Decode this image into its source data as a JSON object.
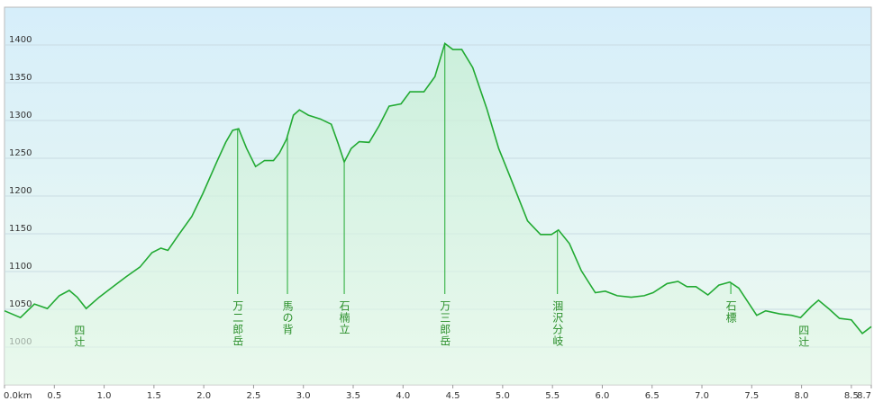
{
  "chart_data": {
    "type": "area",
    "x": [
      0,
      0.16,
      0.3,
      0.43,
      0.55,
      0.65,
      0.73,
      0.82,
      0.95,
      1.09,
      1.22,
      1.36,
      1.48,
      1.57,
      1.64,
      1.75,
      1.88,
      1.99,
      2.13,
      2.22,
      2.29,
      2.35,
      2.43,
      2.52,
      2.61,
      2.7,
      2.76,
      2.83,
      2.9,
      2.96,
      3.05,
      3.17,
      3.28,
      3.35,
      3.41,
      3.48,
      3.56,
      3.66,
      3.76,
      3.86,
      3.98,
      4.07,
      4.21,
      4.32,
      4.42,
      4.5,
      4.59,
      4.7,
      4.84,
      4.96,
      5.07,
      5.25,
      5.38,
      5.49,
      5.56,
      5.67,
      5.79,
      5.93,
      6.03,
      6.15,
      6.29,
      6.42,
      6.51,
      6.65,
      6.76,
      6.85,
      6.94,
      7.06,
      7.17,
      7.28,
      7.37,
      7.46,
      7.55,
      7.64,
      7.78,
      7.9,
      7.99,
      8.1,
      8.17,
      8.28,
      8.38,
      8.5,
      8.61,
      8.7
    ],
    "values": [
      1048,
      1039,
      1057,
      1051,
      1068,
      1075,
      1066,
      1051,
      1066,
      1080,
      1093,
      1106,
      1125,
      1131,
      1128,
      1149,
      1173,
      1203,
      1245,
      1271,
      1287,
      1289,
      1263,
      1239,
      1247,
      1247,
      1257,
      1275,
      1307,
      1314,
      1307,
      1302,
      1295,
      1269,
      1245,
      1263,
      1272,
      1271,
      1293,
      1319,
      1322,
      1338,
      1338,
      1358,
      1402,
      1394,
      1394,
      1370,
      1316,
      1263,
      1227,
      1167,
      1149,
      1149,
      1155,
      1137,
      1101,
      1072,
      1074,
      1068,
      1066,
      1068,
      1072,
      1084,
      1087,
      1080,
      1080,
      1069,
      1082,
      1086,
      1078,
      1060,
      1042,
      1048,
      1044,
      1042,
      1039,
      1054,
      1062,
      1050,
      1038,
      1036,
      1018,
      1027
    ],
    "color": "#22aa33",
    "xlim": [
      0,
      8.7
    ],
    "ylim": [
      950,
      1450
    ],
    "xticks": [
      {
        "value": 0,
        "label": "0.0km"
      },
      0.5,
      {
        "value": 1,
        "label": "1.0"
      },
      1.5,
      {
        "value": 2,
        "label": "2.0"
      },
      2.5,
      {
        "value": 3,
        "label": "3.0"
      },
      3.5,
      {
        "value": 4,
        "label": "4.0"
      },
      4.5,
      {
        "value": 5,
        "label": "5.0"
      },
      5.5,
      {
        "value": 6,
        "label": "6.0"
      },
      6.5,
      {
        "value": 7,
        "label": "7.0"
      },
      7.5,
      {
        "value": 8,
        "label": "8.0"
      },
      8.5,
      8.7
    ],
    "yticks": [
      1000,
      1050,
      1100,
      1150,
      1200,
      1250,
      1300,
      1350,
      1400
    ],
    "grid": true,
    "annotations": [
      {
        "label": "四辻",
        "x": 0.75,
        "line": false
      },
      {
        "label": "万二郎岳",
        "x": 2.34,
        "line": true
      },
      {
        "label": "馬の背",
        "x": 2.84,
        "line": true
      },
      {
        "label": "石楠立",
        "x": 3.41,
        "line": true
      },
      {
        "label": "万三郎岳",
        "x": 4.42,
        "line": true
      },
      {
        "label": "涸沢分岐",
        "x": 5.55,
        "line": true
      },
      {
        "label": "石標",
        "x": 7.29,
        "line": true
      },
      {
        "label": "四辻",
        "x": 8.02,
        "line": false
      }
    ]
  }
}
